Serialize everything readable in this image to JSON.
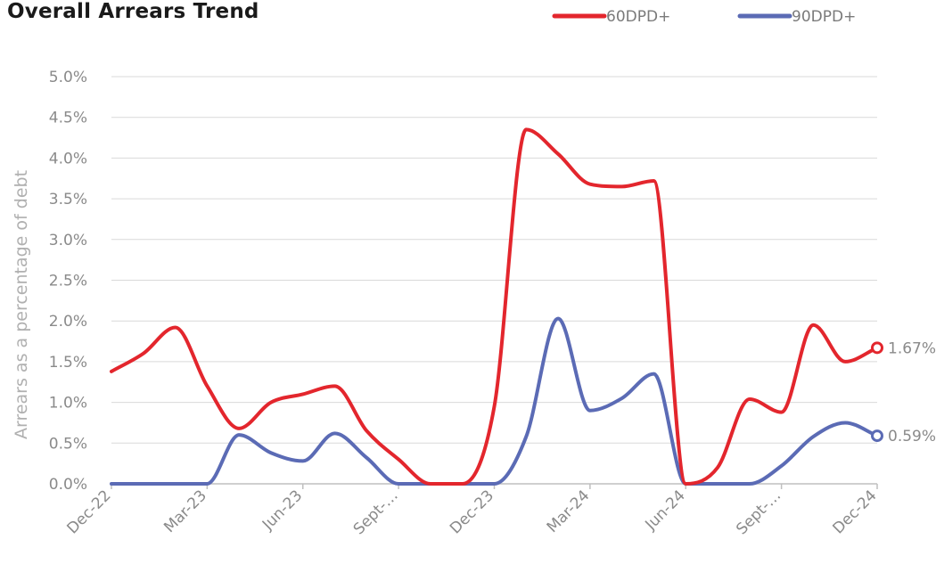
{
  "chart_data": {
    "type": "line",
    "title": "Overall Arrears Trend",
    "ylabel": "Arrears as a percentage of debt",
    "xlabel": "",
    "ylim": [
      0,
      5.0
    ],
    "yticks": [
      "0.0%",
      "0.5%",
      "1.0%",
      "1.5%",
      "2.0%",
      "2.5%",
      "3.0%",
      "3.5%",
      "4.0%",
      "4.5%",
      "5.0%"
    ],
    "x_tick_labels": [
      "Dec-22",
      "Mar-23",
      "Jun-23",
      "Sept-…",
      "Dec-23",
      "Mar-24",
      "Jun-24",
      "Sept-…",
      "Dec-24"
    ],
    "grid": true,
    "legend_position": "top-right",
    "x_months": 25,
    "series": [
      {
        "name": "60DPD+",
        "color": "#e3262d",
        "values": [
          1.38,
          1.6,
          1.92,
          1.2,
          0.68,
          1.0,
          1.1,
          1.2,
          0.65,
          0.3,
          0.0,
          0.0,
          0.95,
          4.35,
          4.05,
          3.68,
          3.65,
          3.72,
          0.0,
          0.2,
          1.04,
          0.88,
          1.95,
          1.5,
          1.67
        ],
        "end_label": "1.67%"
      },
      {
        "name": "90DPD+",
        "color": "#5b6bb5",
        "values": [
          0.0,
          0.0,
          0.0,
          0.0,
          0.6,
          0.38,
          0.28,
          0.62,
          0.32,
          0.0,
          0.0,
          0.0,
          0.0,
          0.58,
          2.03,
          0.9,
          1.05,
          1.35,
          0.0,
          0.0,
          0.0,
          0.22,
          0.58,
          0.75,
          0.59
        ],
        "end_label": "0.59%"
      }
    ]
  }
}
